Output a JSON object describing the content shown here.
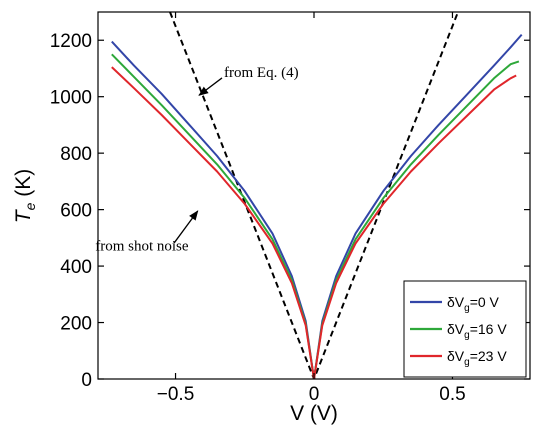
{
  "chart_data": {
    "type": "line",
    "xlabel": "V (V)",
    "ylabel_main": "T",
    "ylabel_sub": "e",
    "ylabel_unit": " (K)",
    "xlim": [
      -0.78,
      0.78
    ],
    "ylim": [
      0,
      1300
    ],
    "xticks": [
      -0.5,
      0,
      0.5
    ],
    "xtick_labels": [
      "−0.5",
      "0",
      "0.5"
    ],
    "yticks": [
      0,
      200,
      400,
      600,
      800,
      1000,
      1200
    ],
    "ytick_labels": [
      "0",
      "200",
      "400",
      "600",
      "800",
      "1000",
      "1200"
    ],
    "grid": false,
    "legend_position": "bottom-right",
    "series": [
      {
        "name": "δV",
        "name_sub": "g",
        "name_suffix": "=0 V",
        "color": "#3346a8",
        "x": [
          -0.73,
          -0.65,
          -0.55,
          -0.45,
          -0.35,
          -0.25,
          -0.15,
          -0.08,
          -0.03,
          0,
          0.03,
          0.08,
          0.15,
          0.25,
          0.35,
          0.45,
          0.55,
          0.65,
          0.71,
          0.75
        ],
        "y": [
          1195,
          1110,
          1010,
          900,
          790,
          665,
          515,
          365,
          205,
          0,
          205,
          365,
          515,
          665,
          790,
          900,
          1005,
          1110,
          1175,
          1220
        ]
      },
      {
        "name": "δV",
        "name_sub": "g",
        "name_suffix": "=16 V",
        "color": "#2ea83a",
        "x": [
          -0.73,
          -0.65,
          -0.55,
          -0.45,
          -0.35,
          -0.25,
          -0.15,
          -0.08,
          -0.03,
          0,
          0.03,
          0.08,
          0.15,
          0.25,
          0.35,
          0.45,
          0.55,
          0.65,
          0.71,
          0.74
        ],
        "y": [
          1150,
          1070,
          970,
          865,
          760,
          640,
          495,
          350,
          195,
          0,
          195,
          350,
          495,
          640,
          760,
          865,
          965,
          1065,
          1115,
          1125
        ]
      },
      {
        "name": "δV",
        "name_sub": "g",
        "name_suffix": "=23 V",
        "color": "#e0262b",
        "x": [
          -0.73,
          -0.65,
          -0.55,
          -0.45,
          -0.35,
          -0.25,
          -0.15,
          -0.08,
          -0.03,
          0,
          0.03,
          0.08,
          0.15,
          0.25,
          0.35,
          0.45,
          0.55,
          0.65,
          0.71,
          0.73
        ],
        "y": [
          1105,
          1030,
          935,
          835,
          735,
          620,
          480,
          340,
          190,
          0,
          190,
          340,
          480,
          620,
          735,
          835,
          930,
          1025,
          1065,
          1075
        ]
      }
    ],
    "reference_lines": [
      {
        "color": "#000000",
        "dashed": true,
        "x": [
          -0.52,
          0,
          0.52
        ],
        "y": [
          1300,
          0,
          1300
        ]
      }
    ],
    "annotations": [
      {
        "text": "from Eq. (4)",
        "arrow": true,
        "text_at": [
          -0.325,
          1070
        ],
        "arrow_to": [
          -0.415,
          1005
        ]
      },
      {
        "text": "from shot noise",
        "arrow": false,
        "text_at": [
          -0.79,
          455
        ]
      }
    ],
    "annotation_arrows": [
      {
        "from": [
          -0.505,
          482
        ],
        "to": [
          -0.42,
          595
        ]
      }
    ]
  }
}
